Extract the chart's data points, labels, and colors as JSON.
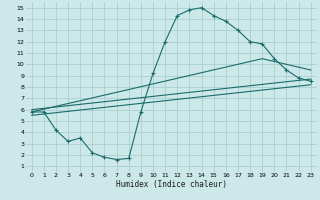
{
  "title": "",
  "xlabel": "Humidex (Indice chaleur)",
  "bg_color": "#cce8e8",
  "grid_color": "#aacfcf",
  "line_color": "#1a6b6b",
  "xlim": [
    -0.5,
    23.5
  ],
  "ylim": [
    0.5,
    15.5
  ],
  "xticks": [
    0,
    1,
    2,
    3,
    4,
    5,
    6,
    7,
    8,
    9,
    10,
    11,
    12,
    13,
    14,
    15,
    16,
    17,
    18,
    19,
    20,
    21,
    22,
    23
  ],
  "yticks": [
    1,
    2,
    3,
    4,
    5,
    6,
    7,
    8,
    9,
    10,
    11,
    12,
    13,
    14,
    15
  ],
  "line1_x": [
    0,
    1,
    2,
    3,
    4,
    5,
    6,
    7,
    8,
    9,
    10,
    11,
    12,
    13,
    14,
    15,
    16,
    17,
    18,
    19,
    20,
    21,
    22,
    23
  ],
  "line1_y": [
    5.8,
    5.8,
    4.2,
    3.2,
    3.5,
    2.2,
    1.8,
    1.6,
    1.7,
    5.8,
    9.2,
    12.0,
    14.3,
    14.8,
    15.0,
    14.3,
    13.8,
    13.0,
    12.0,
    11.8,
    10.5,
    9.5,
    8.8,
    8.5
  ],
  "line2_x": [
    0,
    23
  ],
  "line2_y": [
    6.0,
    8.7
  ],
  "line3_x": [
    0,
    23
  ],
  "line3_y": [
    5.5,
    8.2
  ],
  "line4_x": [
    0,
    19,
    23
  ],
  "line4_y": [
    5.8,
    10.5,
    9.5
  ]
}
